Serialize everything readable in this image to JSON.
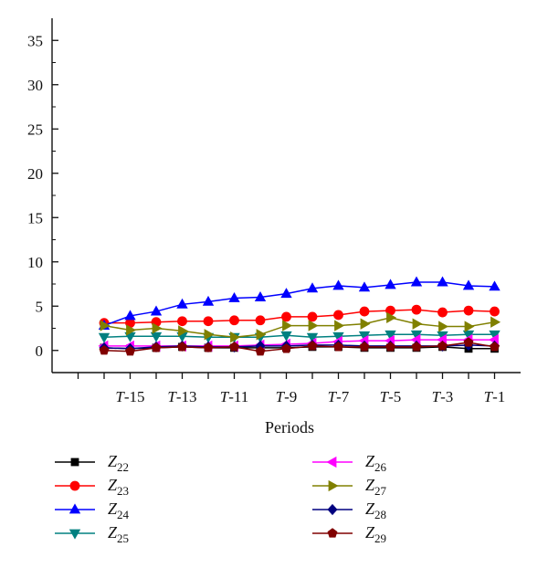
{
  "chart_data": {
    "type": "line",
    "xlabel": "Periods",
    "ylabel": "",
    "ylim": [
      -2.5,
      37.5
    ],
    "yticks": [
      0,
      5,
      10,
      15,
      20,
      25,
      30,
      35
    ],
    "x": [
      -16,
      -15,
      -14,
      -13,
      -12,
      -11,
      -10,
      -9,
      -8,
      -7,
      -6,
      -5,
      -4,
      -3,
      -2,
      -1
    ],
    "x_tick_labels": [
      {
        "x": -15,
        "prefix": "T",
        "suffix": "-15"
      },
      {
        "x": -13,
        "prefix": "T",
        "suffix": "-13"
      },
      {
        "x": -11,
        "prefix": "T",
        "suffix": "-11"
      },
      {
        "x": -9,
        "prefix": "T",
        "suffix": "-9"
      },
      {
        "x": -7,
        "prefix": "T",
        "suffix": "-7"
      },
      {
        "x": -5,
        "prefix": "T",
        "suffix": "-5"
      },
      {
        "x": -3,
        "prefix": "T",
        "suffix": "-3"
      },
      {
        "x": -1,
        "prefix": "T",
        "suffix": "-1"
      }
    ],
    "legend_placement": "bottom, two columns",
    "grid": false,
    "series": [
      {
        "name_main": "Z",
        "name_sub": "22",
        "color": "#000000",
        "marker": "square",
        "values": [
          0.3,
          0.2,
          0.3,
          0.4,
          0.3,
          0.3,
          0.3,
          0.3,
          0.4,
          0.4,
          0.3,
          0.3,
          0.3,
          0.4,
          0.2,
          0.2
        ]
      },
      {
        "name_main": "Z",
        "name_sub": "23",
        "color": "#ff0000",
        "marker": "circle",
        "values": [
          3.1,
          3.1,
          3.2,
          3.3,
          3.3,
          3.4,
          3.4,
          3.8,
          3.8,
          4.0,
          4.4,
          4.5,
          4.6,
          4.3,
          4.5,
          4.4
        ]
      },
      {
        "name_main": "Z",
        "name_sub": "24",
        "color": "#0000ff",
        "marker": "triangle-up",
        "values": [
          2.8,
          3.9,
          4.4,
          5.2,
          5.5,
          5.9,
          6.0,
          6.4,
          7.0,
          7.3,
          7.1,
          7.4,
          7.7,
          7.7,
          7.3,
          7.2
        ]
      },
      {
        "name_main": "Z",
        "name_sub": "25",
        "color": "#008080",
        "marker": "triangle-down",
        "values": [
          1.5,
          1.6,
          1.6,
          1.6,
          1.5,
          1.5,
          1.5,
          1.7,
          1.5,
          1.6,
          1.7,
          1.8,
          1.8,
          1.7,
          1.8,
          1.8
        ]
      },
      {
        "name_main": "Z",
        "name_sub": "26",
        "color": "#ff00ff",
        "marker": "triangle-left",
        "values": [
          0.5,
          0.5,
          0.5,
          0.5,
          0.5,
          0.5,
          0.6,
          0.7,
          0.8,
          1.0,
          1.1,
          1.1,
          1.2,
          1.2,
          1.2,
          1.2
        ]
      },
      {
        "name_main": "Z",
        "name_sub": "27",
        "color": "#808000",
        "marker": "triangle-right",
        "values": [
          2.8,
          2.3,
          2.5,
          2.2,
          1.8,
          1.5,
          1.8,
          2.8,
          2.8,
          2.8,
          3.0,
          3.7,
          3.0,
          2.7,
          2.7,
          3.2
        ]
      },
      {
        "name_main": "Z",
        "name_sub": "28",
        "color": "#000080",
        "marker": "diamond",
        "values": [
          0.3,
          0.2,
          0.4,
          0.5,
          0.4,
          0.4,
          0.5,
          0.5,
          0.6,
          0.6,
          0.5,
          0.5,
          0.5,
          0.5,
          0.6,
          0.5
        ]
      },
      {
        "name_main": "Z",
        "name_sub": "29",
        "color": "#800000",
        "marker": "pentagon",
        "values": [
          0.0,
          -0.1,
          0.3,
          0.4,
          0.3,
          0.4,
          -0.1,
          0.2,
          0.5,
          0.4,
          0.4,
          0.4,
          0.4,
          0.5,
          0.9,
          0.4
        ]
      }
    ]
  }
}
